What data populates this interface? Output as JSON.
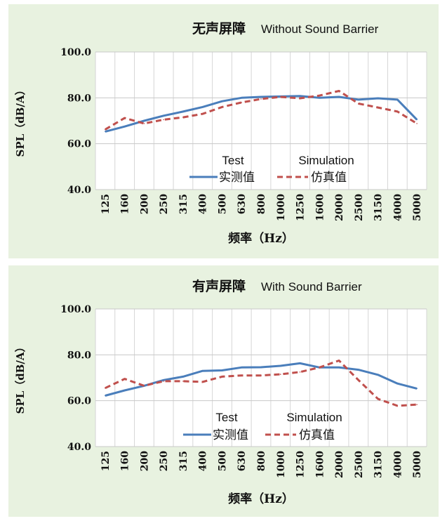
{
  "chart_data": [
    {
      "type": "line",
      "title_cn": "无声屏障",
      "title_en": "Without Sound Barrier",
      "xlabel": "频率（Hz）",
      "ylabel": "SPL（dB/A）",
      "ylim": [
        40,
        100
      ],
      "yticks": [
        "40.0",
        "60.0",
        "80.0",
        "100.0"
      ],
      "categories": [
        "125",
        "160",
        "200",
        "250",
        "315",
        "400",
        "500",
        "630",
        "800",
        "1000",
        "1250",
        "1600",
        "2000",
        "2500",
        "3150",
        "4000",
        "5000"
      ],
      "legend": {
        "placement": "lower-center",
        "test_en": "Test",
        "test_cn": "实测值",
        "sim_en": "Simulation",
        "sim_cn": "仿真值"
      },
      "series": [
        {
          "name": "实测值",
          "style": "solid",
          "color": "#4a7ebb",
          "values": [
            65.3,
            67.5,
            70.0,
            72.2,
            74.0,
            76.0,
            78.5,
            80.0,
            80.4,
            80.6,
            80.8,
            80.0,
            80.4,
            79.2,
            79.8,
            79.2,
            70.5
          ]
        },
        {
          "name": "仿真值",
          "style": "dashed",
          "color": "#c0504d",
          "values": [
            66.2,
            71.2,
            68.8,
            70.5,
            71.5,
            73.0,
            76.0,
            78.0,
            79.5,
            80.4,
            79.8,
            81.0,
            83.0,
            77.5,
            75.8,
            74.0,
            68.8
          ]
        }
      ]
    },
    {
      "type": "line",
      "title_cn": "有声屏障",
      "title_en": "With Sound Barrier",
      "xlabel": "频率（Hz）",
      "ylabel": "SPL（dB/A）",
      "ylim": [
        40,
        100
      ],
      "yticks": [
        "40.0",
        "60.0",
        "80.0",
        "100.0"
      ],
      "categories": [
        "125",
        "160",
        "200",
        "250",
        "315",
        "400",
        "500",
        "630",
        "800",
        "1000",
        "1250",
        "1600",
        "2000",
        "2500",
        "3150",
        "4000",
        "5000"
      ],
      "legend": {
        "placement": "lower-center",
        "test_en": "Test",
        "test_cn": "实测值",
        "sim_en": "Simulation",
        "sim_cn": "仿真值"
      },
      "series": [
        {
          "name": "实测值",
          "style": "solid",
          "color": "#4a7ebb",
          "values": [
            62.2,
            64.5,
            66.5,
            69.0,
            70.5,
            73.0,
            73.2,
            74.5,
            74.6,
            75.2,
            76.3,
            74.5,
            74.5,
            73.5,
            71.3,
            67.5,
            65.3
          ]
        },
        {
          "name": "仿真值",
          "style": "dashed",
          "color": "#c0504d",
          "values": [
            65.5,
            69.5,
            66.5,
            68.5,
            68.5,
            68.2,
            70.5,
            71.0,
            71.0,
            71.5,
            72.5,
            74.5,
            77.5,
            69.0,
            60.8,
            57.8,
            58.3
          ]
        }
      ]
    }
  ]
}
